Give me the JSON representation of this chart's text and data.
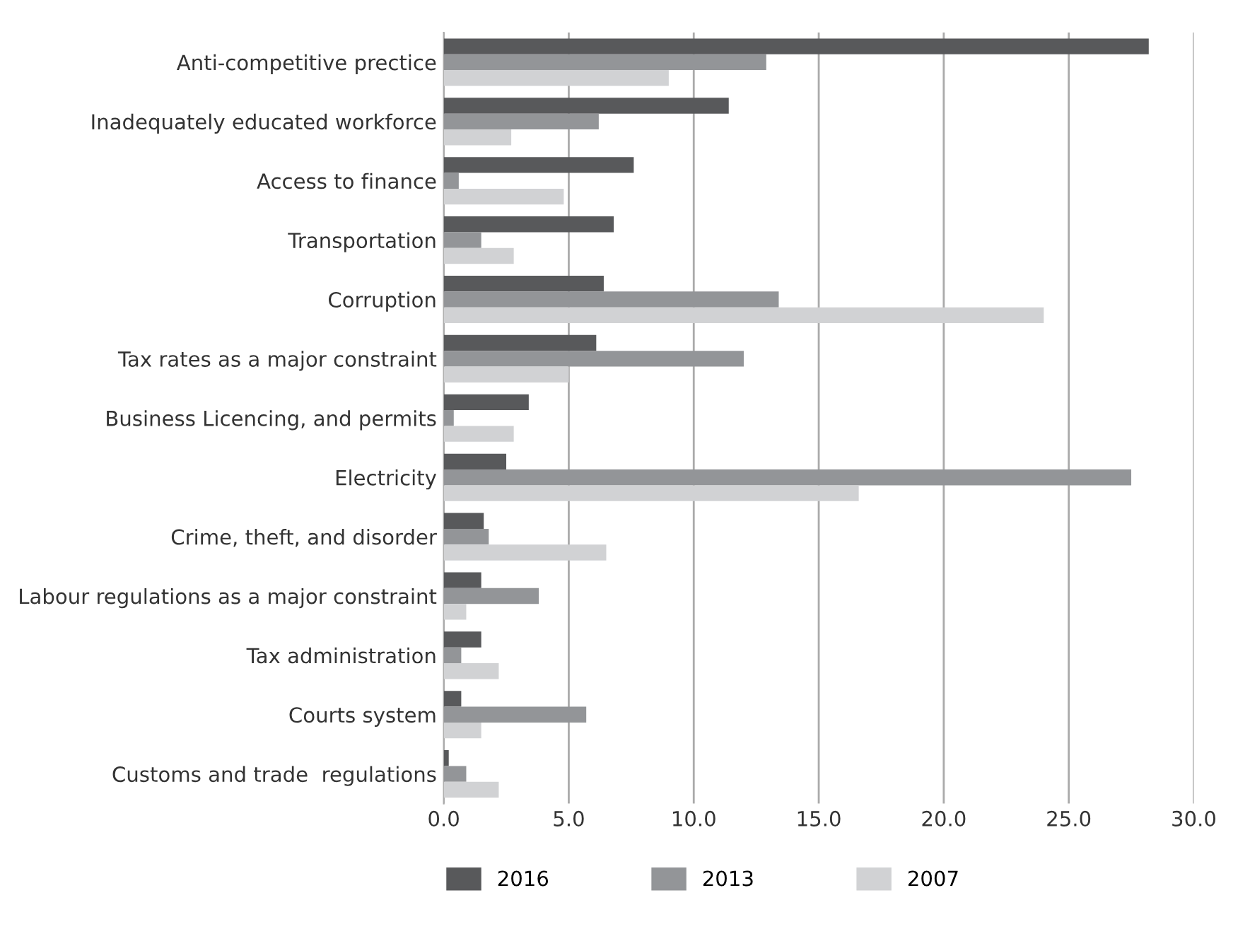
{
  "chart_data": {
    "type": "bar",
    "orientation": "horizontal",
    "categories": [
      "Anti-competitive prectice",
      "Inadequately educated workforce",
      "Access to finance",
      "Transportation",
      "Corruption",
      "Tax rates as a major constraint",
      "Business Licencing, and permits",
      "Electricity",
      "Crime, theft, and disorder",
      "Labour regulations as a major constraint",
      "Tax administration",
      "Courts system",
      "Customs and trade  regulations"
    ],
    "series": [
      {
        "name": "2016",
        "color": "#58595b",
        "values": [
          28.2,
          11.4,
          7.6,
          6.8,
          6.4,
          6.1,
          3.4,
          2.5,
          1.6,
          1.5,
          1.5,
          0.7,
          0.2
        ]
      },
      {
        "name": "2013",
        "color": "#939598",
        "values": [
          12.9,
          6.2,
          0.6,
          1.5,
          13.4,
          12.0,
          0.4,
          27.5,
          1.8,
          3.8,
          0.7,
          5.7,
          0.9
        ]
      },
      {
        "name": "2007",
        "color": "#d1d2d4",
        "values": [
          9.0,
          2.7,
          4.8,
          2.8,
          24.0,
          5.0,
          2.8,
          16.6,
          6.5,
          0.9,
          2.2,
          1.5,
          2.2
        ]
      }
    ],
    "xlim": [
      0,
      30
    ],
    "xticks": [
      {
        "value": 0,
        "label": "0.0"
      },
      {
        "value": 5,
        "label": "5.0"
      },
      {
        "value": 10,
        "label": "10.0"
      },
      {
        "value": 15,
        "label": "15.0"
      },
      {
        "value": 20,
        "label": "20.0"
      },
      {
        "value": 25,
        "label": "25.0"
      },
      {
        "value": 30,
        "label": "30.0"
      }
    ],
    "grid": "x",
    "legend": "bottom"
  }
}
